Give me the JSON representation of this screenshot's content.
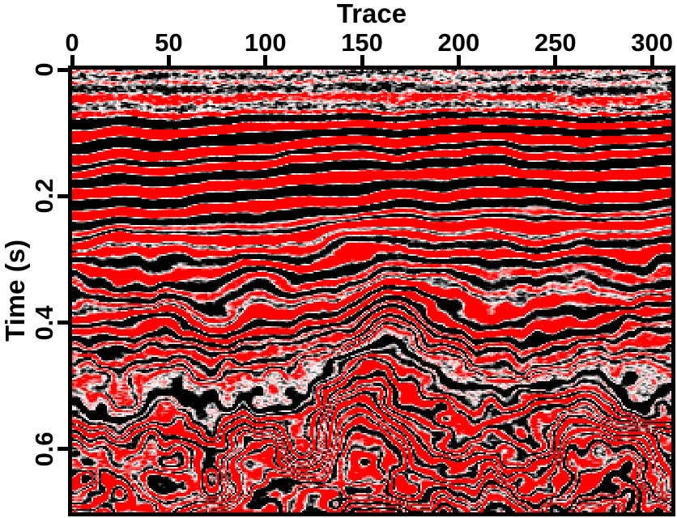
{
  "chart_data": {
    "type": "heatmap",
    "variant": "seismic-reflection-section",
    "xlabel": "Trace",
    "ylabel": "Time (s)",
    "x_range": [
      0,
      310
    ],
    "y_range": [
      0,
      0.7
    ],
    "xticks": [
      0,
      50,
      100,
      150,
      200,
      250,
      300
    ],
    "yticks": [
      "0",
      "0.2",
      "0.4",
      "0.6"
    ],
    "grid": false,
    "legend": false,
    "frame_color": "#000000",
    "colormap": {
      "negative": "#ff0000",
      "zero": "#ffffff",
      "positive": "#000000",
      "note": "red = negative seismic amplitude, white = zero, gray/black = positive amplitude"
    },
    "features": {
      "shallow_noise_zone_time_s": [
        0,
        0.085
      ],
      "layered_package_time_s": [
        0.085,
        0.26
      ],
      "package_rise_to_right_s": 0.03,
      "central_anticline": {
        "apex_trace": 156,
        "onset_time_s": 0.3,
        "relief_s": 0.105
      },
      "right_dome": {
        "apex_trace": 266,
        "onset_time_s": 0.42,
        "relief_s": 0.05
      },
      "deep_chaotic_zone_time_s": [
        0.26,
        0.7
      ]
    }
  }
}
